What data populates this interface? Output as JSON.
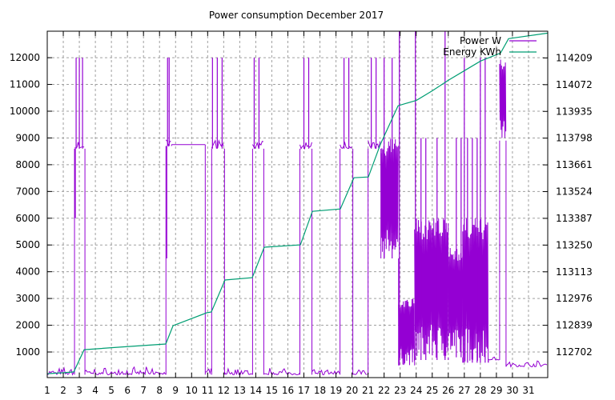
{
  "chart_data": {
    "type": "line",
    "title": "Power consumption December 2017",
    "xlabel": "",
    "ylabel": "",
    "xlim": [
      1,
      32.2
    ],
    "ylim": [
      43,
      12990
    ],
    "y2lim": [
      112571,
      114346
    ],
    "grid": true,
    "legend_position": "top-right",
    "x_ticks": [
      "1",
      "2",
      "3",
      "4",
      "5",
      "6",
      "7",
      "8",
      "9",
      "10",
      "11",
      "12",
      "13",
      "14",
      "15",
      "16",
      "17",
      "18",
      "19",
      "20",
      "21",
      "22",
      "23",
      "24",
      "25",
      "26",
      "27",
      "28",
      "29",
      "30",
      "31"
    ],
    "y_ticks": [
      "1000",
      "2000",
      "3000",
      "4000",
      "5000",
      "6000",
      "7000",
      "8000",
      "9000",
      "10000",
      "11000",
      "12000"
    ],
    "y2_ticks": [
      "112702",
      "112839",
      "112976",
      "113113",
      "113250",
      "113387",
      "113524",
      "113661",
      "113798",
      "113935",
      "114072",
      "114209"
    ],
    "colors": {
      "power": "#9400d3",
      "energy": "#009e73"
    },
    "series": [
      {
        "name": "Power W",
        "axis": "y",
        "segments": [
          {
            "from": 1.0,
            "to": 2.65,
            "low": 150,
            "high": 450
          },
          {
            "from": 2.7,
            "to": 3.35,
            "low": 8600,
            "high": 9000
          },
          {
            "from": 3.35,
            "to": 8.4,
            "low": 150,
            "high": 450
          },
          {
            "from": 8.4,
            "to": 8.75,
            "low": 8700,
            "high": 9000
          },
          {
            "from": 8.75,
            "to": 10.85,
            "low": 8750,
            "high": 8750
          },
          {
            "from": 10.85,
            "to": 11.25,
            "low": 150,
            "high": 400
          },
          {
            "from": 11.25,
            "to": 12.05,
            "low": 8600,
            "high": 9000
          },
          {
            "from": 12.05,
            "to": 13.8,
            "low": 150,
            "high": 450
          },
          {
            "from": 13.8,
            "to": 14.5,
            "low": 8600,
            "high": 9000
          },
          {
            "from": 14.5,
            "to": 16.75,
            "low": 150,
            "high": 450
          },
          {
            "from": 16.75,
            "to": 17.5,
            "low": 8600,
            "high": 9000
          },
          {
            "from": 17.5,
            "to": 19.25,
            "low": 150,
            "high": 400
          },
          {
            "from": 19.25,
            "to": 20.05,
            "low": 8600,
            "high": 9000
          },
          {
            "from": 20.05,
            "to": 21.0,
            "low": 150,
            "high": 450
          },
          {
            "from": 21.0,
            "to": 21.8,
            "low": 8600,
            "high": 9000
          },
          {
            "from": 21.8,
            "to": 22.9,
            "low": 4500,
            "high": 9000
          },
          {
            "from": 22.9,
            "to": 23.9,
            "low": 500,
            "high": 3000
          },
          {
            "from": 23.9,
            "to": 26.0,
            "low": 700,
            "high": 6000
          },
          {
            "from": 26.0,
            "to": 26.9,
            "low": 800,
            "high": 5000
          },
          {
            "from": 26.9,
            "to": 28.5,
            "low": 600,
            "high": 6000
          },
          {
            "from": 28.5,
            "to": 29.2,
            "low": 700,
            "high": 900
          },
          {
            "from": 29.2,
            "to": 29.6,
            "low": 8900,
            "high": 12000
          },
          {
            "from": 29.6,
            "to": 32.2,
            "low": 450,
            "high": 700
          }
        ],
        "spikes": [
          [
            2.75,
            6000
          ],
          [
            2.8,
            12000
          ],
          [
            3.0,
            12000
          ],
          [
            3.2,
            12000
          ],
          [
            8.45,
            4500
          ],
          [
            8.5,
            12000
          ],
          [
            8.6,
            12000
          ],
          [
            11.3,
            12000
          ],
          [
            11.6,
            12000
          ],
          [
            11.9,
            12000
          ],
          [
            13.9,
            12000
          ],
          [
            14.2,
            12000
          ],
          [
            17.0,
            12000
          ],
          [
            17.3,
            12000
          ],
          [
            19.5,
            12000
          ],
          [
            19.8,
            12000
          ],
          [
            21.2,
            12000
          ],
          [
            21.5,
            12000
          ],
          [
            22.0,
            12000
          ],
          [
            22.5,
            12000
          ],
          [
            22.95,
            13000
          ],
          [
            23.95,
            13000
          ],
          [
            25.8,
            13000
          ],
          [
            24.3,
            9000
          ],
          [
            24.6,
            9000
          ],
          [
            25.3,
            9000
          ],
          [
            26.5,
            9000
          ],
          [
            26.8,
            9000
          ],
          [
            27.0,
            12000
          ],
          [
            27.2,
            9000
          ],
          [
            27.5,
            9000
          ],
          [
            27.8,
            9000
          ],
          [
            28.0,
            12000
          ],
          [
            28.3,
            12000
          ]
        ]
      },
      {
        "name": "Energy KWh",
        "axis": "y2",
        "x": [
          1.0,
          2.05,
          2.65,
          3.3,
          5.54,
          8.39,
          8.84,
          10.94,
          11.23,
          12.08,
          13.78,
          14.53,
          16.78,
          17.53,
          19.27,
          20.12,
          21.02,
          21.77,
          22.87,
          24.02,
          25.01,
          26.01,
          27.01,
          28.01,
          29.26,
          29.76,
          32.2
        ],
        "y": [
          112591,
          112596,
          112600,
          112714,
          112727,
          112743,
          112837,
          112903,
          112907,
          113071,
          113083,
          113239,
          113251,
          113423,
          113435,
          113595,
          113599,
          113767,
          113964,
          113992,
          114041,
          114095,
          114144,
          114193,
          114234,
          114308,
          114336
        ]
      }
    ]
  }
}
